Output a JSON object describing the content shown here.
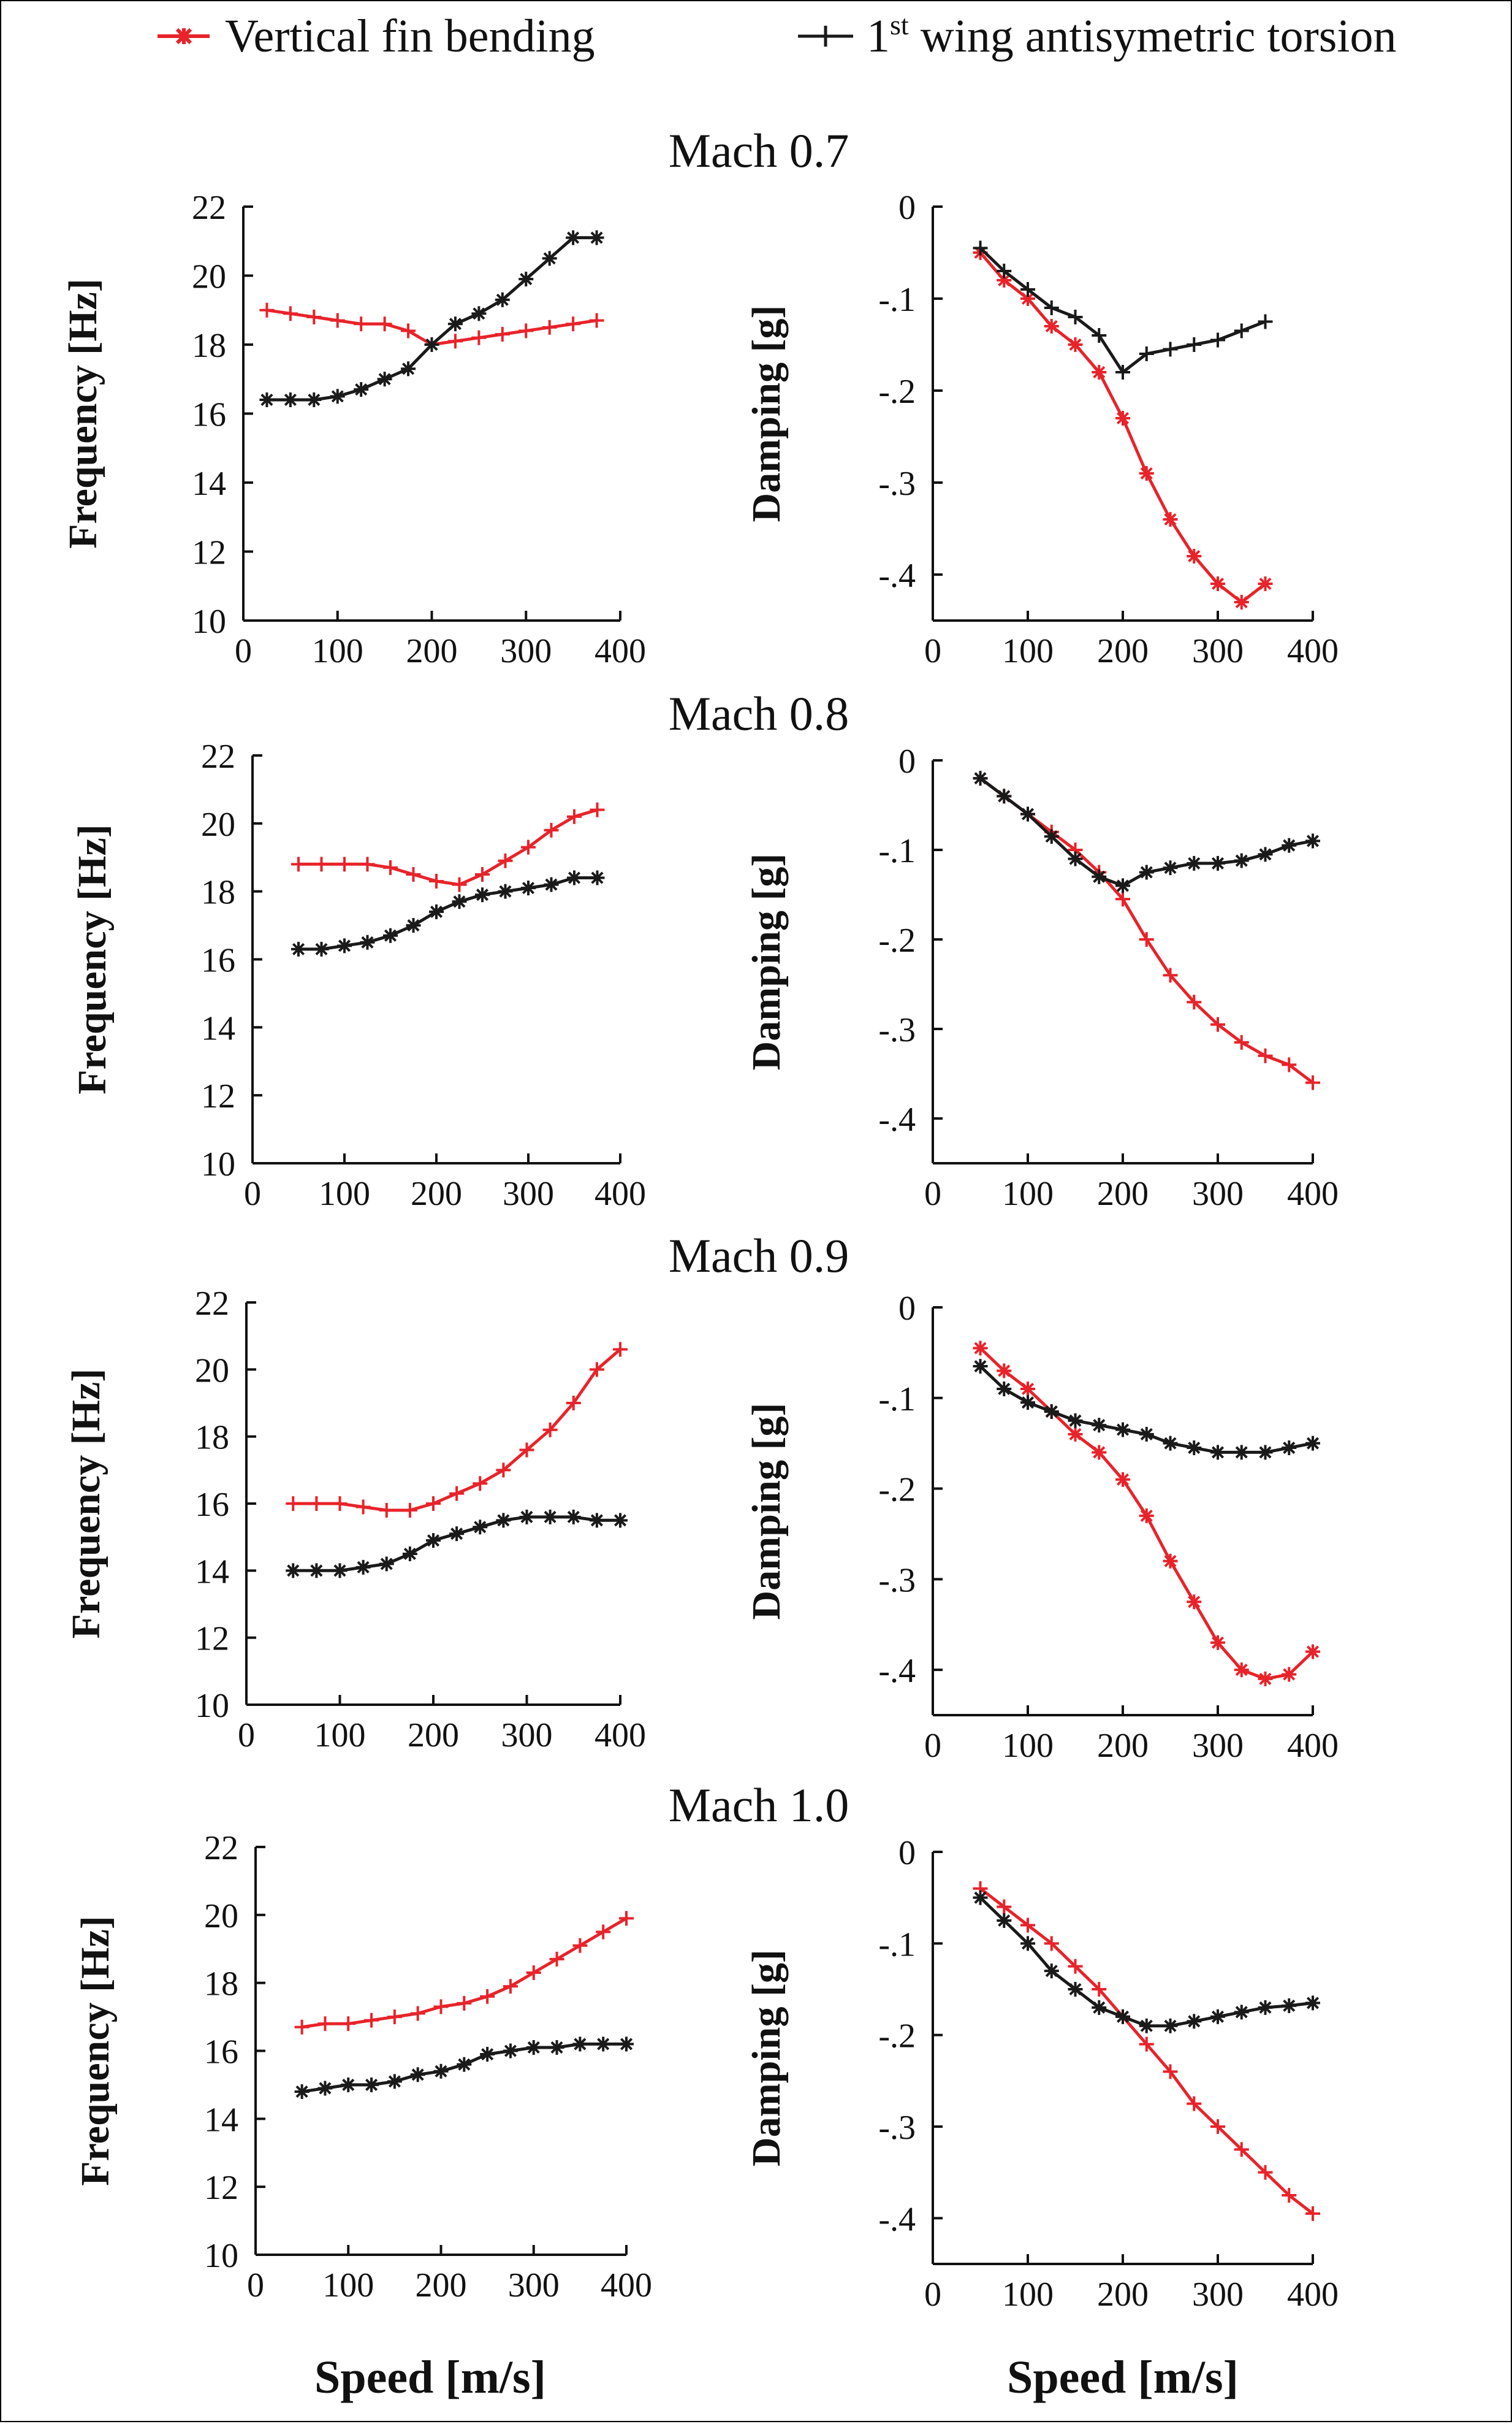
{
  "legend": {
    "fin": "Vertical fin bending",
    "wing_prefix": "1",
    "wing_sup": "st",
    "wing_suffix": " wing antisymetric torsion"
  },
  "colors": {
    "fin": "#e8232a",
    "wing": "#1a1a1a"
  },
  "panel_titles": [
    "Mach 0.7",
    "Mach 0.8",
    "Mach 0.9",
    "Mach 1.0"
  ],
  "labels": {
    "freq_ylabel": "Frequency [Hz]",
    "damp_ylabel": "Damping [g]",
    "xlabel_left": "Speed [m/s]",
    "xlabel_right": "Speed [m/s]"
  },
  "chart_data": [
    {
      "type": "line",
      "title": "Mach 0.7",
      "quantity": "frequency",
      "xlabel": "",
      "ylabel": "Frequency [Hz]",
      "xlim": [
        0,
        400
      ],
      "ylim": [
        10,
        22
      ],
      "xticks": [
        0,
        100,
        200,
        300,
        400
      ],
      "yticks": [
        10,
        12,
        14,
        16,
        18,
        20,
        22
      ],
      "series": [
        {
          "key": "fin",
          "color": "#e8232a",
          "marker": "+",
          "x": [
            25,
            50,
            75,
            100,
            125,
            150,
            175,
            200,
            225,
            250,
            275,
            300,
            325,
            350,
            375
          ],
          "y": [
            19.0,
            18.9,
            18.8,
            18.7,
            18.6,
            18.6,
            18.4,
            18.0,
            18.1,
            18.2,
            18.3,
            18.4,
            18.5,
            18.6,
            18.7
          ]
        },
        {
          "key": "wing",
          "color": "#1a1a1a",
          "marker": "*",
          "x": [
            25,
            50,
            75,
            100,
            125,
            150,
            175,
            200,
            225,
            250,
            275,
            300,
            325,
            350,
            375
          ],
          "y": [
            16.4,
            16.4,
            16.4,
            16.5,
            16.7,
            17.0,
            17.3,
            18.0,
            18.6,
            18.9,
            19.3,
            19.9,
            20.5,
            21.1,
            21.1
          ]
        }
      ]
    },
    {
      "type": "line",
      "title": "Mach 0.7",
      "quantity": "damping",
      "xlabel": "",
      "ylabel": "Damping [g]",
      "xlim": [
        0,
        400
      ],
      "ylim": [
        -0.45,
        0
      ],
      "xticks": [
        0,
        100,
        200,
        300,
        400
      ],
      "yticks": [
        0,
        -0.1,
        -0.2,
        -0.3,
        -0.4
      ],
      "series": [
        {
          "key": "fin",
          "color": "#e8232a",
          "marker": "*",
          "x": [
            50,
            75,
            100,
            125,
            150,
            175,
            200,
            225,
            250,
            275,
            300,
            325,
            350
          ],
          "y": [
            -0.05,
            -0.08,
            -0.1,
            -0.13,
            -0.15,
            -0.18,
            -0.23,
            -0.29,
            -0.34,
            -0.38,
            -0.41,
            -0.43,
            -0.41
          ]
        },
        {
          "key": "wing",
          "color": "#1a1a1a",
          "marker": "+",
          "x": [
            50,
            75,
            100,
            125,
            150,
            175,
            200,
            225,
            250,
            275,
            300,
            325,
            350
          ],
          "y": [
            -0.045,
            -0.07,
            -0.09,
            -0.11,
            -0.12,
            -0.14,
            -0.18,
            -0.16,
            -0.155,
            -0.15,
            -0.145,
            -0.135,
            -0.125
          ]
        }
      ]
    },
    {
      "type": "line",
      "title": "Mach 0.8",
      "quantity": "frequency",
      "xlabel": "",
      "ylabel": "Frequency [Hz]",
      "xlim": [
        0,
        400
      ],
      "ylim": [
        10,
        22
      ],
      "xticks": [
        0,
        100,
        200,
        300,
        400
      ],
      "yticks": [
        10,
        12,
        14,
        16,
        18,
        20,
        22
      ],
      "series": [
        {
          "key": "fin",
          "color": "#e8232a",
          "marker": "+",
          "x": [
            50,
            75,
            100,
            125,
            150,
            175,
            200,
            225,
            250,
            275,
            300,
            325,
            350,
            375
          ],
          "y": [
            18.8,
            18.8,
            18.8,
            18.8,
            18.7,
            18.5,
            18.3,
            18.2,
            18.5,
            18.9,
            19.3,
            19.8,
            20.2,
            20.4
          ]
        },
        {
          "key": "wing",
          "color": "#1a1a1a",
          "marker": "*",
          "x": [
            50,
            75,
            100,
            125,
            150,
            175,
            200,
            225,
            250,
            275,
            300,
            325,
            350,
            375
          ],
          "y": [
            16.3,
            16.3,
            16.4,
            16.5,
            16.7,
            17.0,
            17.4,
            17.7,
            17.9,
            18.0,
            18.1,
            18.2,
            18.4,
            18.4
          ]
        }
      ]
    },
    {
      "type": "line",
      "title": "Mach 0.8",
      "quantity": "damping",
      "xlabel": "",
      "ylabel": "Damping [g]",
      "xlim": [
        0,
        400
      ],
      "ylim": [
        -0.45,
        0
      ],
      "xticks": [
        0,
        100,
        200,
        300,
        400
      ],
      "yticks": [
        0,
        -0.1,
        -0.2,
        -0.3,
        -0.4
      ],
      "series": [
        {
          "key": "fin",
          "color": "#e8232a",
          "marker": "+",
          "x": [
            50,
            75,
            100,
            125,
            150,
            175,
            200,
            225,
            250,
            275,
            300,
            325,
            350,
            375,
            400
          ],
          "y": [
            -0.02,
            -0.04,
            -0.06,
            -0.08,
            -0.1,
            -0.125,
            -0.155,
            -0.2,
            -0.24,
            -0.27,
            -0.295,
            -0.315,
            -0.33,
            -0.34,
            -0.36
          ]
        },
        {
          "key": "wing",
          "color": "#1a1a1a",
          "marker": "*",
          "x": [
            50,
            75,
            100,
            125,
            150,
            175,
            200,
            225,
            250,
            275,
            300,
            325,
            350,
            375,
            400
          ],
          "y": [
            -0.02,
            -0.04,
            -0.06,
            -0.085,
            -0.11,
            -0.13,
            -0.14,
            -0.125,
            -0.12,
            -0.115,
            -0.115,
            -0.112,
            -0.105,
            -0.095,
            -0.09
          ]
        }
      ]
    },
    {
      "type": "line",
      "title": "Mach 0.9",
      "quantity": "frequency",
      "xlabel": "",
      "ylabel": "Frequency [Hz]",
      "xlim": [
        0,
        400
      ],
      "ylim": [
        10,
        22
      ],
      "xticks": [
        0,
        100,
        200,
        300,
        400
      ],
      "yticks": [
        10,
        12,
        14,
        16,
        18,
        20,
        22
      ],
      "series": [
        {
          "key": "fin",
          "color": "#e8232a",
          "marker": "+",
          "x": [
            50,
            75,
            100,
            125,
            150,
            175,
            200,
            225,
            250,
            275,
            300,
            325,
            350,
            375,
            400
          ],
          "y": [
            16.0,
            16.0,
            16.0,
            15.9,
            15.8,
            15.8,
            16.0,
            16.3,
            16.6,
            17.0,
            17.6,
            18.2,
            19.0,
            20.0,
            20.6
          ]
        },
        {
          "key": "wing",
          "color": "#1a1a1a",
          "marker": "*",
          "x": [
            50,
            75,
            100,
            125,
            150,
            175,
            200,
            225,
            250,
            275,
            300,
            325,
            350,
            375,
            400
          ],
          "y": [
            14.0,
            14.0,
            14.0,
            14.1,
            14.2,
            14.5,
            14.9,
            15.1,
            15.3,
            15.5,
            15.6,
            15.6,
            15.6,
            15.5,
            15.5
          ]
        }
      ]
    },
    {
      "type": "line",
      "title": "Mach 0.9",
      "quantity": "damping",
      "xlabel": "",
      "ylabel": "Damping [g]",
      "xlim": [
        0,
        400
      ],
      "ylim": [
        -0.45,
        0
      ],
      "xticks": [
        0,
        100,
        200,
        300,
        400
      ],
      "yticks": [
        0,
        -0.1,
        -0.2,
        -0.3,
        -0.4
      ],
      "series": [
        {
          "key": "fin",
          "color": "#e8232a",
          "marker": "*",
          "x": [
            50,
            75,
            100,
            125,
            150,
            175,
            200,
            225,
            250,
            275,
            300,
            325,
            350,
            375,
            400
          ],
          "y": [
            -0.045,
            -0.07,
            -0.09,
            -0.115,
            -0.14,
            -0.16,
            -0.19,
            -0.23,
            -0.28,
            -0.325,
            -0.37,
            -0.4,
            -0.41,
            -0.405,
            -0.38
          ]
        },
        {
          "key": "wing",
          "color": "#1a1a1a",
          "marker": "*",
          "x": [
            50,
            75,
            100,
            125,
            150,
            175,
            200,
            225,
            250,
            275,
            300,
            325,
            350,
            375,
            400
          ],
          "y": [
            -0.065,
            -0.09,
            -0.105,
            -0.115,
            -0.125,
            -0.13,
            -0.135,
            -0.14,
            -0.15,
            -0.155,
            -0.16,
            -0.16,
            -0.16,
            -0.155,
            -0.15
          ]
        }
      ]
    },
    {
      "type": "line",
      "title": "Mach 1.0",
      "quantity": "frequency",
      "xlabel": "Speed [m/s]",
      "ylabel": "Frequency [Hz]",
      "xlim": [
        0,
        400
      ],
      "ylim": [
        10,
        22
      ],
      "xticks": [
        0,
        100,
        200,
        300,
        400
      ],
      "yticks": [
        10,
        12,
        14,
        16,
        18,
        20,
        22
      ],
      "series": [
        {
          "key": "fin",
          "color": "#e8232a",
          "marker": "+",
          "x": [
            50,
            75,
            100,
            125,
            150,
            175,
            200,
            225,
            250,
            275,
            300,
            325,
            350,
            375,
            400
          ],
          "y": [
            16.7,
            16.8,
            16.8,
            16.9,
            17.0,
            17.1,
            17.3,
            17.4,
            17.6,
            17.9,
            18.3,
            18.7,
            19.1,
            19.5,
            19.9
          ]
        },
        {
          "key": "wing",
          "color": "#1a1a1a",
          "marker": "*",
          "x": [
            50,
            75,
            100,
            125,
            150,
            175,
            200,
            225,
            250,
            275,
            300,
            325,
            350,
            375,
            400
          ],
          "y": [
            14.8,
            14.9,
            15.0,
            15.0,
            15.1,
            15.3,
            15.4,
            15.6,
            15.9,
            16.0,
            16.1,
            16.1,
            16.2,
            16.2,
            16.2
          ]
        }
      ]
    },
    {
      "type": "line",
      "title": "Mach 1.0",
      "quantity": "damping",
      "xlabel": "Speed [m/s]",
      "ylabel": "Damping [g]",
      "xlim": [
        0,
        400
      ],
      "ylim": [
        -0.45,
        0
      ],
      "xticks": [
        0,
        100,
        200,
        300,
        400
      ],
      "yticks": [
        0,
        -0.1,
        -0.2,
        -0.3,
        -0.4
      ],
      "series": [
        {
          "key": "fin",
          "color": "#e8232a",
          "marker": "+",
          "x": [
            50,
            75,
            100,
            125,
            150,
            175,
            200,
            225,
            250,
            275,
            300,
            325,
            350,
            375,
            400
          ],
          "y": [
            -0.04,
            -0.06,
            -0.08,
            -0.1,
            -0.125,
            -0.15,
            -0.18,
            -0.21,
            -0.24,
            -0.275,
            -0.3,
            -0.325,
            -0.35,
            -0.375,
            -0.395
          ]
        },
        {
          "key": "wing",
          "color": "#1a1a1a",
          "marker": "*",
          "x": [
            50,
            75,
            100,
            125,
            150,
            175,
            200,
            225,
            250,
            275,
            300,
            325,
            350,
            375,
            400
          ],
          "y": [
            -0.05,
            -0.075,
            -0.1,
            -0.13,
            -0.15,
            -0.17,
            -0.18,
            -0.19,
            -0.19,
            -0.185,
            -0.18,
            -0.175,
            -0.17,
            -0.168,
            -0.165
          ]
        }
      ]
    }
  ]
}
